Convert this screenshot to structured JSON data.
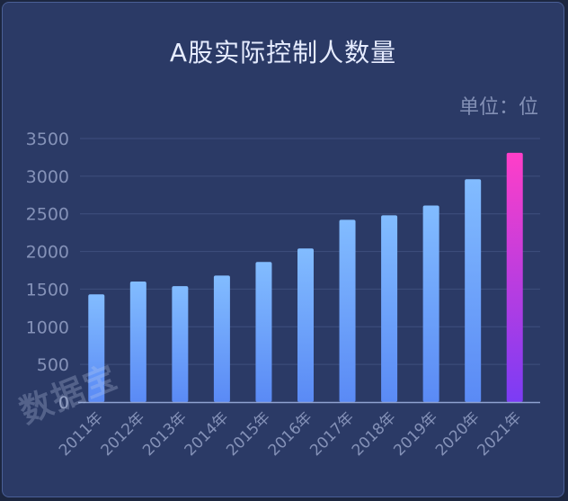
{
  "header": {
    "title": "A股实际控制人数量",
    "unit": "单位：位"
  },
  "watermark": "数据宝",
  "chart_data": {
    "type": "bar",
    "title": "A股实际控制人数量",
    "ylabel": "",
    "xlabel": "",
    "unit": "单位：位",
    "categories": [
      "2011年",
      "2012年",
      "2013年",
      "2014年",
      "2015年",
      "2016年",
      "2017年",
      "2018年",
      "2019年",
      "2020年",
      "2021年"
    ],
    "values": [
      1430,
      1600,
      1540,
      1680,
      1860,
      2040,
      2420,
      2480,
      2610,
      2960,
      3310
    ],
    "ylim": [
      0,
      3500
    ],
    "yticks": [
      0,
      500,
      1000,
      1500,
      2000,
      2500,
      3000,
      3500
    ],
    "grid": true,
    "legend": "none",
    "colors": {
      "bar_top": "#82bcff",
      "bar_bottom": "#5a8af5",
      "highlight_top": "#ff3ec8",
      "highlight_bottom": "#7b3cf5",
      "grid": "#3f4f7e",
      "axis": "#8fa2d0",
      "tick_label": "#8592b8"
    }
  }
}
